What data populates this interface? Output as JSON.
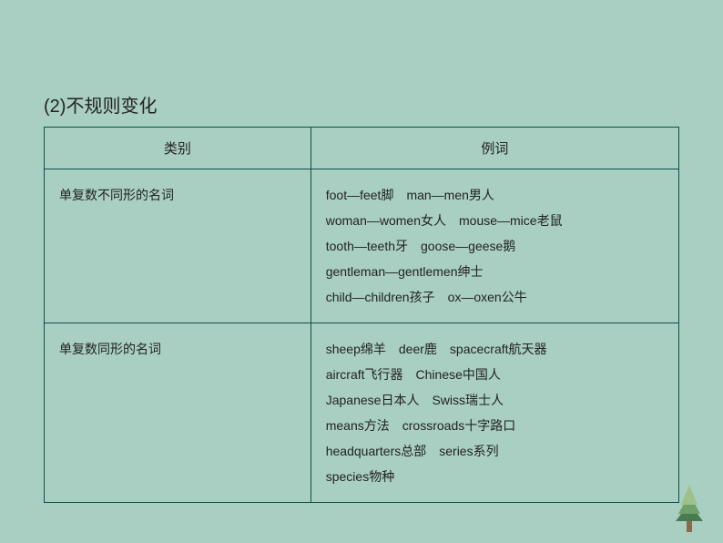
{
  "colors": {
    "background": "#a9cfc2",
    "border": "#0a4f4a",
    "text": "#222222"
  },
  "heading": "(2)不规则变化",
  "table": {
    "headers": [
      "类别",
      "例词"
    ],
    "rows": [
      {
        "category": "单复数不同形的名词",
        "lines": [
          [
            "foot—feet脚",
            "man—men男人"
          ],
          [
            "woman—women女人",
            "mouse—mice老鼠"
          ],
          [
            "tooth—teeth牙",
            "goose—geese鹅"
          ],
          [
            "gentleman—gentlemen绅士"
          ],
          [
            "child—children孩子",
            "ox—oxen公牛"
          ]
        ]
      },
      {
        "category": "单复数同形的名词",
        "lines": [
          [
            "sheep绵羊",
            "deer鹿",
            "spacecraft航天器"
          ],
          [
            "aircraft飞行器",
            "Chinese中国人"
          ],
          [
            "Japanese日本人",
            "Swiss瑞士人"
          ],
          [
            "means方法",
            "crossroads十字路口"
          ],
          [
            "headquarters总部",
            "series系列"
          ],
          [
            "species物种"
          ]
        ]
      }
    ]
  },
  "tree": {
    "trunk_color": "#8a6a4a",
    "foliage_dark": "#4a7a52",
    "foliage_mid": "#6fa06a",
    "foliage_light": "#9cc28a"
  }
}
